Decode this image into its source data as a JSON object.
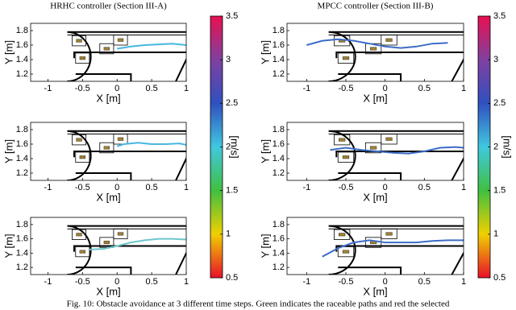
{
  "caption": "Fig. 10: Obstacle avoidance at 3 different time steps. Green indicates the raceable paths and red the selected",
  "chart_data": [
    {
      "type": "line",
      "title": "HRHC controller (Section III-A)",
      "xlabel": "X [m]",
      "ylabel": "Y [m]",
      "xlim": [
        -1.25,
        1
      ],
      "ylim": [
        1.1,
        1.9
      ],
      "xticks": [
        -1,
        -0.5,
        0,
        0.5,
        1
      ],
      "yticks": [
        1.2,
        1.4,
        1.6,
        1.8
      ],
      "color": "#46b8e0",
      "x": [
        0,
        0.2,
        0.4,
        0.6,
        0.8,
        1
      ],
      "values": [
        1.55,
        1.58,
        1.6,
        1.61,
        1.62,
        1.6
      ]
    },
    {
      "type": "line",
      "xlabel": "X [m]",
      "ylabel": "Y [m]",
      "xlim": [
        -1.25,
        1
      ],
      "ylim": [
        1.1,
        1.9
      ],
      "xticks": [
        -1,
        -0.5,
        0,
        0.5,
        1
      ],
      "yticks": [
        1.2,
        1.4,
        1.6,
        1.8
      ],
      "color": "#46b8e0",
      "x": [
        0,
        0.1,
        0.3,
        0.5,
        0.7,
        0.9,
        1
      ],
      "values": [
        1.57,
        1.6,
        1.62,
        1.6,
        1.6,
        1.61,
        1.59
      ]
    },
    {
      "type": "line",
      "xlabel": "X [m]",
      "ylabel": "Y [m]",
      "xlim": [
        -1.25,
        1
      ],
      "ylim": [
        1.1,
        1.9
      ],
      "xticks": [
        -1,
        -0.5,
        0,
        0.5,
        1
      ],
      "yticks": [
        1.2,
        1.4,
        1.6,
        1.8
      ],
      "color": "#6cc6cc",
      "x": [
        -0.4,
        -0.2,
        0,
        0.2,
        0.4,
        0.6,
        0.8,
        1
      ],
      "values": [
        1.45,
        1.46,
        1.5,
        1.55,
        1.58,
        1.6,
        1.6,
        1.59
      ]
    },
    {
      "type": "line",
      "title": "MPCC controller (Section III-B)",
      "xlabel": "X [m]",
      "ylabel": "Y [m]",
      "xlim": [
        -1.25,
        1
      ],
      "ylim": [
        1.1,
        1.9
      ],
      "xticks": [
        -1,
        -0.5,
        0,
        0.5,
        1
      ],
      "yticks": [
        1.2,
        1.4,
        1.6,
        1.8
      ],
      "color": "#3d6cc6",
      "x": [
        -1,
        -0.8,
        -0.6,
        -0.4,
        -0.2,
        0,
        0.2,
        0.4,
        0.6,
        0.8
      ],
      "values": [
        1.6,
        1.66,
        1.68,
        1.66,
        1.62,
        1.58,
        1.56,
        1.58,
        1.62,
        1.63
      ]
    },
    {
      "type": "line",
      "xlabel": "X [m]",
      "ylabel": "Y [m]",
      "xlim": [
        -1.25,
        1
      ],
      "ylim": [
        1.1,
        1.9
      ],
      "xticks": [
        -1,
        -0.5,
        0,
        0.5,
        1
      ],
      "yticks": [
        1.2,
        1.4,
        1.6,
        1.8
      ],
      "color": "#3d6cc6",
      "x": [
        -0.7,
        -0.5,
        -0.3,
        -0.1,
        0.1,
        0.3,
        0.5,
        0.7,
        0.9,
        1
      ],
      "values": [
        1.52,
        1.55,
        1.52,
        1.5,
        1.48,
        1.47,
        1.5,
        1.55,
        1.56,
        1.55
      ]
    },
    {
      "type": "line",
      "xlabel": "X [m]",
      "ylabel": "Y [m]",
      "xlim": [
        -1.25,
        1
      ],
      "ylim": [
        1.1,
        1.9
      ],
      "xticks": [
        -1,
        -0.5,
        0,
        0.5,
        1
      ],
      "yticks": [
        1.2,
        1.4,
        1.6,
        1.8
      ],
      "color": "#3d6cc6",
      "x": [
        -0.8,
        -0.6,
        -0.4,
        -0.2,
        0,
        0.2,
        0.4,
        0.6,
        0.8,
        1
      ],
      "values": [
        1.35,
        1.47,
        1.55,
        1.58,
        1.55,
        1.55,
        1.55,
        1.57,
        1.58,
        1.58
      ]
    },
    {
      "type": "colorbar",
      "label": "[m/s]",
      "ylim": [
        0.5,
        3.5
      ],
      "yticks": [
        0.5,
        1,
        1.5,
        2,
        2.5,
        3,
        3.5
      ],
      "colormap": [
        "#e8102a",
        "#f0d000",
        "#40c040",
        "#40c8e0",
        "#3050c0",
        "#8040a0",
        "#e81050"
      ]
    },
    {
      "type": "colorbar",
      "label": "[m/s]",
      "ylim": [
        0.5,
        3.5
      ],
      "yticks": [
        0.5,
        1,
        1.5,
        2,
        2.5,
        3,
        3.5
      ],
      "colormap": [
        "#e8102a",
        "#f0d000",
        "#40c040",
        "#40c8e0",
        "#3050c0",
        "#8040a0",
        "#e81050"
      ]
    }
  ]
}
